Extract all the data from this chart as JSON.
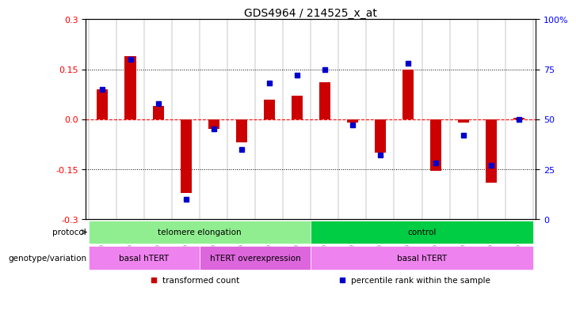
{
  "title": "GDS4964 / 214525_x_at",
  "samples": [
    "GSM1019110",
    "GSM1019111",
    "GSM1019112",
    "GSM1019113",
    "GSM1019102",
    "GSM1019103",
    "GSM1019104",
    "GSM1019105",
    "GSM1019098",
    "GSM1019099",
    "GSM1019100",
    "GSM1019101",
    "GSM1019106",
    "GSM1019107",
    "GSM1019108",
    "GSM1019109"
  ],
  "transformed_count": [
    0.09,
    0.19,
    0.04,
    -0.22,
    -0.03,
    -0.07,
    0.06,
    0.07,
    0.11,
    -0.01,
    -0.1,
    0.15,
    -0.155,
    -0.01,
    -0.19,
    0.005
  ],
  "percentile_rank": [
    65,
    80,
    58,
    10,
    45,
    35,
    68,
    72,
    75,
    47,
    32,
    78,
    28,
    42,
    27,
    50
  ],
  "bar_color": "#cc0000",
  "dot_color": "#0000cc",
  "ylim_left": [
    -0.3,
    0.3
  ],
  "ylim_right": [
    0,
    100
  ],
  "yticks_left": [
    -0.3,
    -0.15,
    0.0,
    0.15,
    0.3
  ],
  "yticks_right": [
    0,
    25,
    50,
    75,
    100
  ],
  "hline_color": "#ff0000",
  "dotted_color": "#000000",
  "background_chart": "#ffffff",
  "protocol_groups": [
    {
      "label": "telomere elongation",
      "start": 0,
      "end": 8,
      "color": "#90ee90"
    },
    {
      "label": "control",
      "start": 8,
      "end": 16,
      "color": "#00cc44"
    }
  ],
  "genotype_groups": [
    {
      "label": "basal hTERT",
      "start": 0,
      "end": 4,
      "color": "#ee82ee"
    },
    {
      "label": "hTERT overexpression",
      "start": 4,
      "end": 8,
      "color": "#dd66dd"
    },
    {
      "label": "basal hTERT",
      "start": 8,
      "end": 16,
      "color": "#ee82ee"
    }
  ],
  "legend_items": [
    {
      "color": "#cc0000",
      "label": "transformed count"
    },
    {
      "color": "#0000cc",
      "label": "percentile rank within the sample"
    }
  ],
  "row_labels": [
    "protocol",
    "genotype/variation"
  ],
  "tick_bg_color": "#cccccc"
}
